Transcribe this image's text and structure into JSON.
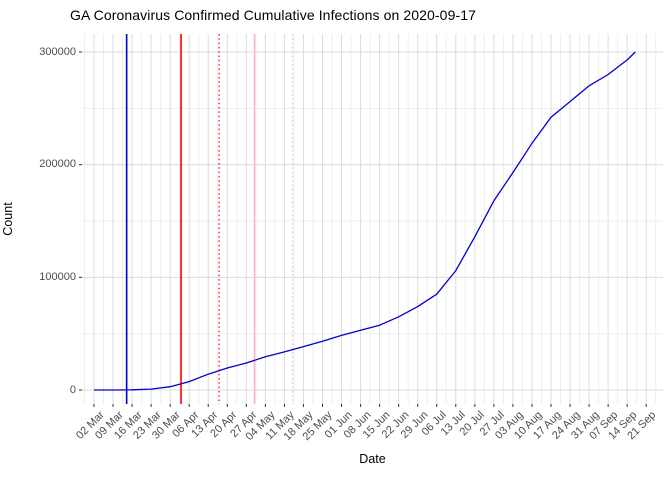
{
  "figure": {
    "title": "GA Coronavirus Confirmed Cumulative Infections on 2020-09-17"
  },
  "chart_data": {
    "type": "line",
    "title": "GA Coronavirus Confirmed Cumulative Infections on 2020-09-17",
    "xlabel": "Date",
    "ylabel": "Count",
    "grid": true,
    "legend": "none",
    "ylim": [
      0,
      300000
    ],
    "y_ticks": [
      0,
      100000,
      200000,
      300000
    ],
    "y_tick_labels": [
      "0",
      "100000",
      "200000",
      "300000"
    ],
    "x_start_date": "2020-03-02",
    "x_end_date": "2020-09-21",
    "x_tick_labels": [
      "02 Mar",
      "09 Mar",
      "16 Mar",
      "23 Mar",
      "30 Mar",
      "06 Apr",
      "13 Apr",
      "20 Apr",
      "27 Apr",
      "04 May",
      "11 May",
      "18 May",
      "25 May",
      "01 Jun",
      "08 Jun",
      "15 Jun",
      "22 Jun",
      "29 Jun",
      "06 Jul",
      "13 Jul",
      "20 Jul",
      "27 Jul",
      "03 Aug",
      "10 Aug",
      "17 Aug",
      "24 Aug",
      "31 Aug",
      "07 Sep",
      "14 Sep",
      "21 Sep"
    ],
    "colors": {
      "line": "#0000CD",
      "grid_major": "#DCDCDC",
      "grid_minor": "#EEEEEE",
      "tick_mark": "#333333",
      "tick_text": "#4d4d4d"
    },
    "series": [
      {
        "name": "cumulative-confirmed-infections",
        "color": "#0000CD",
        "points": [
          {
            "date": "2020-03-02",
            "value": 3
          },
          {
            "date": "2020-03-09",
            "value": 30
          },
          {
            "date": "2020-03-16",
            "value": 200
          },
          {
            "date": "2020-03-23",
            "value": 800
          },
          {
            "date": "2020-03-30",
            "value": 2900
          },
          {
            "date": "2020-04-06",
            "value": 7500
          },
          {
            "date": "2020-04-13",
            "value": 14000
          },
          {
            "date": "2020-04-20",
            "value": 19500
          },
          {
            "date": "2020-04-27",
            "value": 24000
          },
          {
            "date": "2020-05-04",
            "value": 29500
          },
          {
            "date": "2020-05-11",
            "value": 33800
          },
          {
            "date": "2020-05-18",
            "value": 38500
          },
          {
            "date": "2020-05-25",
            "value": 43300
          },
          {
            "date": "2020-06-01",
            "value": 48500
          },
          {
            "date": "2020-06-08",
            "value": 53000
          },
          {
            "date": "2020-06-15",
            "value": 57500
          },
          {
            "date": "2020-06-22",
            "value": 65000
          },
          {
            "date": "2020-06-29",
            "value": 74000
          },
          {
            "date": "2020-07-06",
            "value": 85000
          },
          {
            "date": "2020-07-13",
            "value": 106000
          },
          {
            "date": "2020-07-20",
            "value": 136000
          },
          {
            "date": "2020-07-27",
            "value": 168000
          },
          {
            "date": "2020-08-03",
            "value": 193000
          },
          {
            "date": "2020-08-10",
            "value": 219000
          },
          {
            "date": "2020-08-17",
            "value": 242000
          },
          {
            "date": "2020-08-24",
            "value": 256000
          },
          {
            "date": "2020-08-31",
            "value": 270000
          },
          {
            "date": "2020-09-07",
            "value": 280000
          },
          {
            "date": "2020-09-14",
            "value": 293000
          },
          {
            "date": "2020-09-17",
            "value": 300000
          }
        ]
      }
    ],
    "vlines": [
      {
        "name": "event-line-blue-solid",
        "date": "2020-03-14",
        "color": "#0000CD",
        "style": "solid"
      },
      {
        "name": "event-line-red-solid",
        "date": "2020-04-03",
        "color": "#FF0000",
        "style": "solid"
      },
      {
        "name": "event-line-red-dotted",
        "date": "2020-04-17",
        "color": "#FF0000",
        "style": "dotted"
      },
      {
        "name": "event-line-pink-solid",
        "date": "2020-04-30",
        "color": "#FFB6C1",
        "style": "solid"
      },
      {
        "name": "event-line-pink-dotted",
        "date": "2020-05-14",
        "color": "#FFB6C1",
        "style": "dotted"
      }
    ]
  }
}
